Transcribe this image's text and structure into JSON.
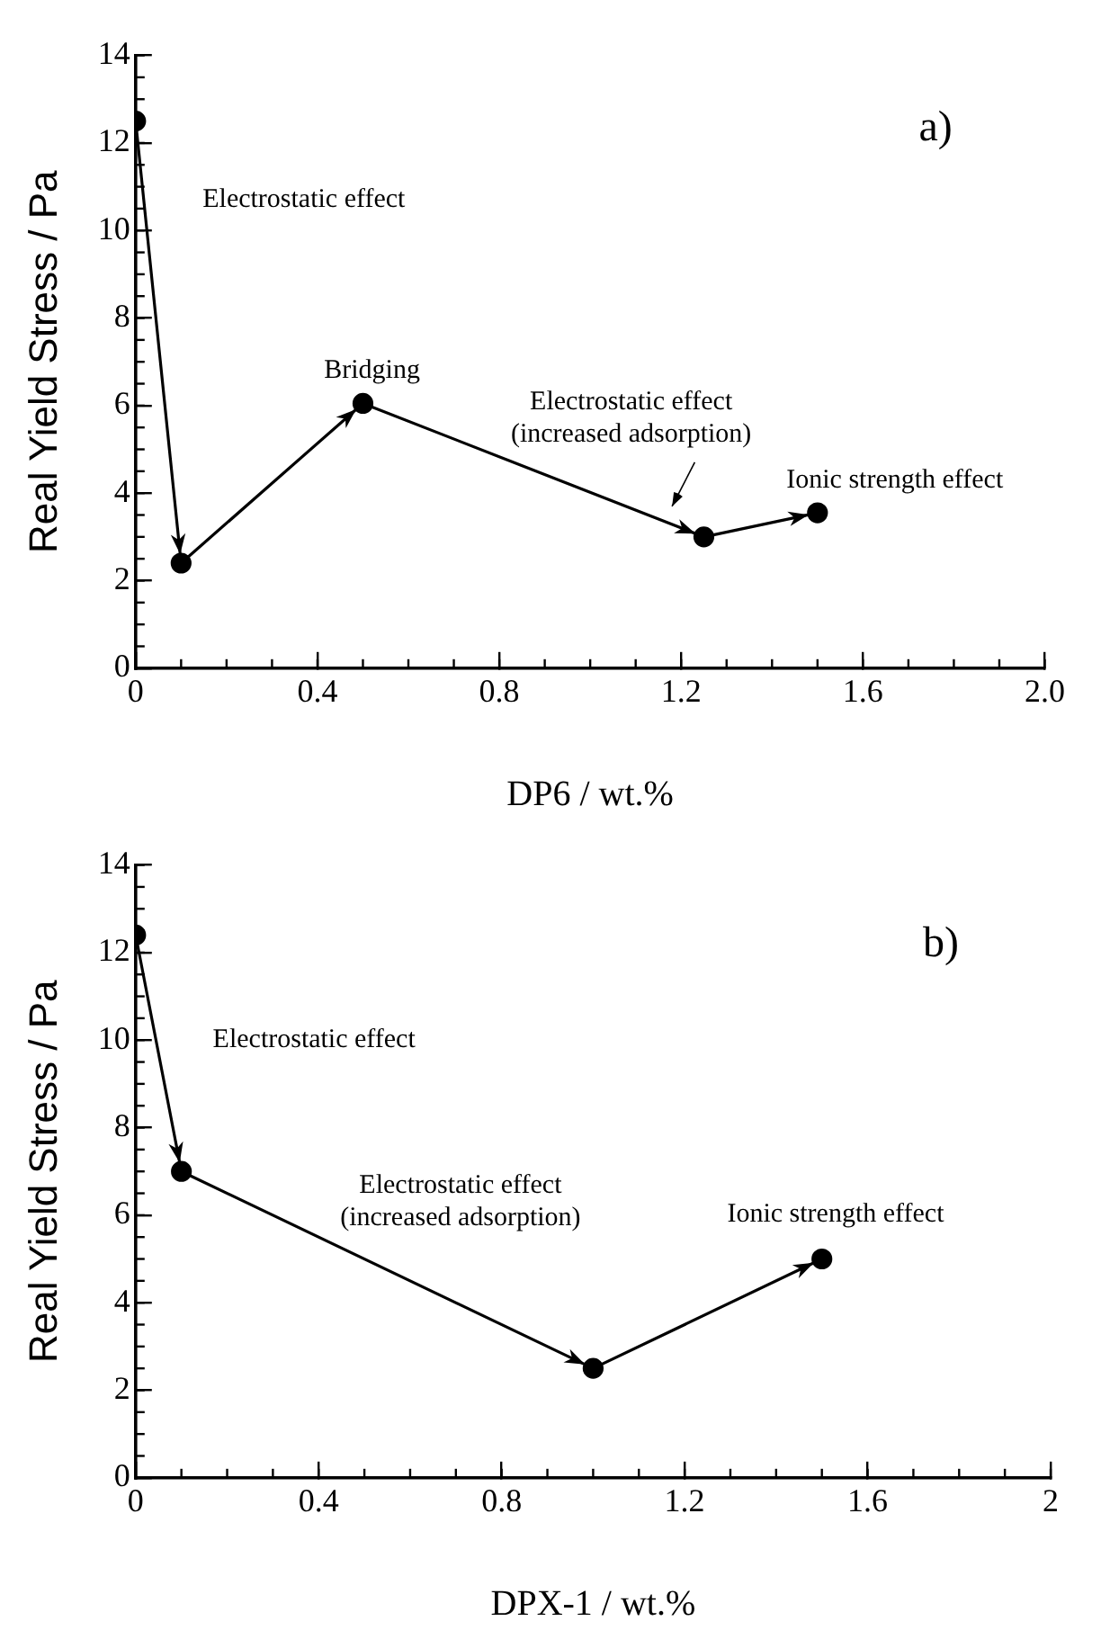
{
  "chart_data": [
    {
      "type": "line",
      "xlabel": "DP6 / wt.%",
      "ylabel": "Real Yield Stress / Pa",
      "xlim": [
        0,
        2
      ],
      "xticks": [
        0,
        0.4,
        0.8,
        1.2,
        1.6,
        {
          "value": 2,
          "label": "2.0"
        }
      ],
      "ylim": [
        0,
        14
      ],
      "yticks": [
        0,
        2,
        4,
        6,
        8,
        10,
        12,
        14
      ],
      "grid": false,
      "legend": false,
      "marker": "circle",
      "line_style": "solid",
      "series": [
        {
          "color": "#000000",
          "x": [
            0,
            0.1,
            0.5,
            1.25,
            1.5
          ],
          "values": [
            12.5,
            2.4,
            6.05,
            3.0,
            3.55
          ]
        }
      ],
      "annotations": [
        "a)",
        "Electrostatic effect",
        "Bridging",
        "Electrostatic effect\n(increased adsorption)",
        "Ionic strength effect"
      ]
    },
    {
      "type": "line",
      "xlabel": "DPX-1 / wt.%",
      "ylabel": "Real Yield Stress / Pa",
      "xlim": [
        0,
        2
      ],
      "xticks": [
        0,
        0.4,
        0.8,
        1.2,
        1.6,
        2
      ],
      "ylim": [
        0,
        14
      ],
      "yticks": [
        0,
        2,
        4,
        6,
        8,
        10,
        12,
        14
      ],
      "grid": false,
      "legend": false,
      "marker": "circle",
      "line_style": "solid",
      "series": [
        {
          "color": "#000000",
          "x": [
            0,
            0.1,
            1.0,
            1.5
          ],
          "values": [
            12.4,
            7.0,
            2.5,
            5.0
          ]
        }
      ],
      "annotations": [
        "b)",
        "Electrostatic effect",
        "Electrostatic effect\n(increased adsorption)",
        "Ionic strength effect"
      ]
    }
  ]
}
